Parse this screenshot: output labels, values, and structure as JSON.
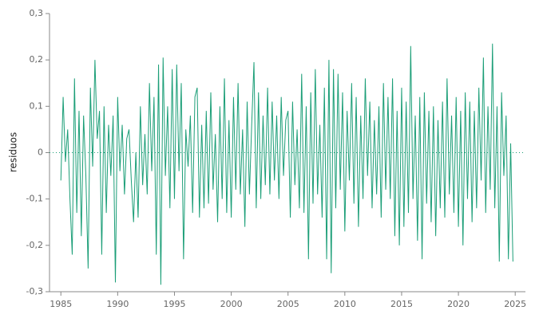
{
  "chart_data": {
    "type": "line",
    "y_label": "residuos",
    "color": "#1b9e77",
    "zero_line": true,
    "xlim": [
      1984,
      2025.9
    ],
    "xticks": [
      1985,
      1990,
      1995,
      2000,
      2005,
      2010,
      2015,
      2020,
      2025
    ],
    "ylim": [
      -0.3,
      0.3
    ],
    "yticks": [
      {
        "value": -0.3,
        "label": "-0,3"
      },
      {
        "value": -0.2,
        "label": "-0,2"
      },
      {
        "value": -0.1,
        "label": "-0,1"
      },
      0,
      {
        "value": 0.1,
        "label": "0,1"
      },
      {
        "value": 0.2,
        "label": "0,2"
      },
      {
        "value": 0.3,
        "label": "0,3"
      }
    ],
    "x": [
      1985,
      1985.2,
      1985.4,
      1985.6,
      1985.8,
      1986,
      1986.2,
      1986.4,
      1986.6,
      1986.8,
      1987,
      1987.2,
      1987.4,
      1987.6,
      1987.8,
      1988,
      1988.2,
      1988.4,
      1988.6,
      1988.8,
      1989,
      1989.2,
      1989.4,
      1989.6,
      1989.8,
      1990,
      1990.2,
      1990.4,
      1990.6,
      1990.8,
      1991,
      1991.2,
      1991.4,
      1991.6,
      1991.8,
      1992,
      1992.2,
      1992.4,
      1992.6,
      1992.8,
      1993,
      1993.2,
      1993.4,
      1993.6,
      1993.8,
      1994,
      1994.2,
      1994.4,
      1994.6,
      1994.8,
      1995,
      1995.2,
      1995.4,
      1995.6,
      1995.8,
      1996,
      1996.2,
      1996.4,
      1996.6,
      1996.8,
      1997,
      1997.2,
      1997.4,
      1997.6,
      1997.8,
      1998,
      1998.2,
      1998.4,
      1998.6,
      1998.8,
      1999,
      1999.2,
      1999.4,
      1999.6,
      1999.8,
      2000,
      2000.2,
      2000.4,
      2000.6,
      2000.8,
      2001,
      2001.2,
      2001.4,
      2001.6,
      2001.8,
      2002,
      2002.2,
      2002.4,
      2002.6,
      2002.8,
      2003,
      2003.2,
      2003.4,
      2003.6,
      2003.8,
      2004,
      2004.2,
      2004.4,
      2004.6,
      2004.8,
      2005,
      2005.2,
      2005.4,
      2005.6,
      2005.8,
      2006,
      2006.2,
      2006.4,
      2006.6,
      2006.8,
      2007,
      2007.2,
      2007.4,
      2007.6,
      2007.8,
      2008,
      2008.2,
      2008.4,
      2008.6,
      2008.8,
      2009,
      2009.2,
      2009.4,
      2009.6,
      2009.8,
      2010,
      2010.2,
      2010.4,
      2010.6,
      2010.8,
      2011,
      2011.2,
      2011.4,
      2011.6,
      2011.8,
      2012,
      2012.2,
      2012.4,
      2012.6,
      2012.8,
      2013,
      2013.2,
      2013.4,
      2013.6,
      2013.8,
      2014,
      2014.2,
      2014.4,
      2014.6,
      2014.8,
      2015,
      2015.2,
      2015.4,
      2015.6,
      2015.8,
      2016,
      2016.2,
      2016.4,
      2016.6,
      2016.8,
      2017,
      2017.2,
      2017.4,
      2017.6,
      2017.8,
      2018,
      2018.2,
      2018.4,
      2018.6,
      2018.8,
      2019,
      2019.2,
      2019.4,
      2019.6,
      2019.8,
      2020,
      2020.2,
      2020.4,
      2020.6,
      2020.8,
      2021,
      2021.2,
      2021.4,
      2021.6,
      2021.8,
      2022,
      2022.2,
      2022.4,
      2022.6,
      2022.8,
      2023,
      2023.2,
      2023.4,
      2023.6,
      2023.8,
      2024,
      2024.2,
      2024.4,
      2024.6,
      2024.8
    ],
    "values": [
      -0.06,
      0.12,
      -0.02,
      0.05,
      -0.1,
      -0.22,
      0.16,
      -0.13,
      0.09,
      -0.18,
      0.08,
      -0.05,
      -0.25,
      0.14,
      -0.03,
      0.2,
      0.03,
      0.09,
      -0.22,
      0.1,
      -0.13,
      0.06,
      -0.05,
      0.08,
      -0.28,
      0.12,
      -0.04,
      0.06,
      -0.09,
      0.03,
      0.05,
      -0.06,
      -0.15,
      0.0,
      -0.14,
      0.1,
      -0.07,
      0.04,
      -0.09,
      0.15,
      -0.04,
      0.12,
      -0.22,
      0.19,
      -0.285,
      0.205,
      -0.05,
      0.1,
      -0.12,
      0.18,
      -0.1,
      0.19,
      -0.04,
      0.15,
      -0.23,
      0.05,
      -0.03,
      0.08,
      -0.13,
      0.12,
      0.14,
      -0.14,
      0.06,
      -0.12,
      0.09,
      -0.11,
      0.13,
      -0.08,
      0.04,
      -0.15,
      0.1,
      -0.1,
      0.16,
      -0.13,
      0.07,
      -0.14,
      0.12,
      -0.08,
      0.15,
      -0.09,
      0.05,
      -0.16,
      0.11,
      -0.09,
      0.06,
      0.195,
      -0.12,
      0.13,
      -0.1,
      0.08,
      -0.07,
      0.14,
      -0.09,
      0.11,
      -0.06,
      0.08,
      -0.1,
      0.12,
      -0.05,
      0.07,
      0.09,
      -0.14,
      0.11,
      -0.07,
      0.05,
      -0.12,
      0.17,
      -0.13,
      0.1,
      -0.23,
      0.13,
      -0.11,
      0.18,
      -0.09,
      0.06,
      -0.14,
      0.14,
      -0.23,
      0.2,
      -0.26,
      0.18,
      -0.12,
      0.17,
      -0.08,
      0.13,
      -0.17,
      0.09,
      -0.06,
      0.15,
      -0.11,
      0.12,
      -0.16,
      0.08,
      -0.1,
      0.16,
      -0.05,
      0.11,
      -0.12,
      0.07,
      -0.09,
      0.1,
      -0.14,
      0.15,
      -0.08,
      0.12,
      -0.1,
      0.16,
      -0.18,
      0.09,
      -0.2,
      0.14,
      -0.16,
      0.11,
      -0.13,
      0.23,
      -0.1,
      0.08,
      -0.19,
      0.12,
      -0.23,
      0.13,
      -0.11,
      0.09,
      -0.15,
      0.1,
      -0.18,
      0.07,
      -0.12,
      0.11,
      -0.14,
      0.16,
      -0.09,
      0.08,
      -0.13,
      0.12,
      -0.16,
      0.09,
      -0.2,
      0.13,
      -0.1,
      0.11,
      -0.15,
      0.09,
      -0.12,
      0.14,
      -0.06,
      0.205,
      -0.13,
      0.1,
      -0.08,
      0.235,
      -0.12,
      0.1,
      -0.235,
      0.13,
      -0.05,
      0.08,
      -0.23,
      0.02,
      -0.235
    ]
  }
}
